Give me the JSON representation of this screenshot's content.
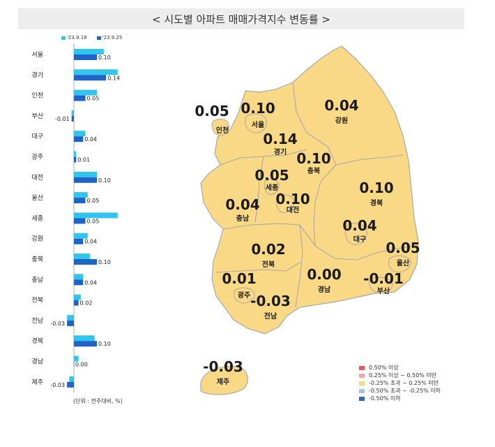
{
  "title": "< 시도별 아파트 매매가격지수 변동률 >",
  "unit_note": "(단위 : 전주대비, %)",
  "colors": {
    "prev": "#33c4ee",
    "curr": "#1f63c6",
    "map_fill": "#f9d986",
    "map_stroke": "#a8a8a8"
  },
  "chart_data": [
    {
      "type": "bar",
      "orientation": "horizontal",
      "categories": [
        "서울",
        "경기",
        "인천",
        "부산",
        "대구",
        "광주",
        "대전",
        "울산",
        "세종",
        "강원",
        "충북",
        "충남",
        "전북",
        "전남",
        "경북",
        "경남",
        "제주"
      ],
      "series": [
        {
          "name": "'23.9.18",
          "values": [
            0.13,
            0.19,
            0.1,
            -0.01,
            0.05,
            0.01,
            0.1,
            0.06,
            0.19,
            0.06,
            0.07,
            0.04,
            0.03,
            -0.03,
            0.09,
            0.02,
            -0.02
          ]
        },
        {
          "name": "'23.9.25",
          "values": [
            0.1,
            0.14,
            0.05,
            -0.01,
            0.04,
            0.01,
            0.1,
            0.05,
            0.05,
            0.04,
            0.1,
            0.04,
            0.02,
            -0.03,
            0.1,
            0.0,
            -0.03
          ]
        }
      ],
      "value_labels": [
        "0.10",
        "0.14",
        "0.05",
        "-0.01",
        "0.04",
        "0.01",
        "0.10",
        "0.05",
        "0.05",
        "0.04",
        "0.10",
        "0.04",
        "0.02",
        "-0.03",
        "0.10",
        "0.00",
        "-0.03"
      ],
      "legend_position": "top"
    },
    {
      "type": "map",
      "regions": [
        {
          "name": "인천",
          "value": "0.05"
        },
        {
          "name": "서울",
          "value": "0.10"
        },
        {
          "name": "경기",
          "value": "0.14"
        },
        {
          "name": "강원",
          "value": "0.04"
        },
        {
          "name": "충북",
          "value": "0.10"
        },
        {
          "name": "세종",
          "value": "0.05"
        },
        {
          "name": "대전",
          "value": "0.10"
        },
        {
          "name": "충남",
          "value": "0.04"
        },
        {
          "name": "경북",
          "value": "0.10"
        },
        {
          "name": "대구",
          "value": "0.04"
        },
        {
          "name": "울산",
          "value": "0.05"
        },
        {
          "name": "전북",
          "value": "0.02"
        },
        {
          "name": "광주",
          "value": "0.01"
        },
        {
          "name": "경남",
          "value": "0.00"
        },
        {
          "name": "부산",
          "value": "-0.01"
        },
        {
          "name": "전남",
          "value": "-0.03"
        },
        {
          "name": "제주",
          "value": "-0.03"
        }
      ],
      "legend": [
        {
          "label": "0.50% 이상",
          "color": "#e0595e"
        },
        {
          "label": "0.25% 이상 ~ 0.50% 미만",
          "color": "#f2a7a2"
        },
        {
          "label": "-0.25% 초과 ~ 0.25% 미만",
          "color": "#f9d986"
        },
        {
          "label": "-0.50% 초과 ~ -0.25% 이하",
          "color": "#a9c2e2"
        },
        {
          "label": "-0.50% 이하",
          "color": "#3a64b8"
        }
      ],
      "legend_position": "bottom-right"
    }
  ]
}
